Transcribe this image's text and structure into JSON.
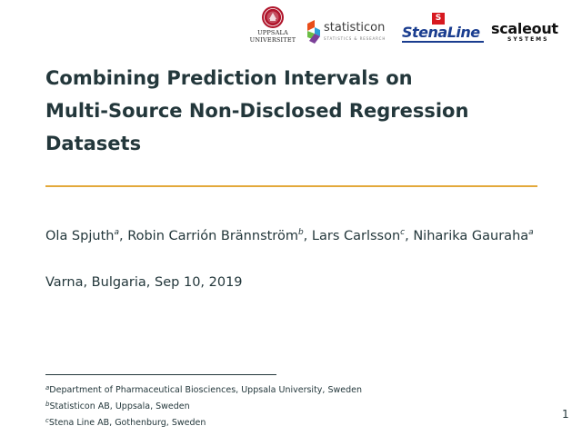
{
  "logos": {
    "uppsala": {
      "line1": "UPPSALA",
      "line2": "UNIVERSITET",
      "color": "#b0152b"
    },
    "statisticon": {
      "name": "statisticon",
      "tagline": "STATISTICS & RESEARCH"
    },
    "stenaline": {
      "flag_letter": "S",
      "name": "StenaLine"
    },
    "scaleout": {
      "name": "scaleout",
      "sub": "SYSTEMS"
    }
  },
  "title": {
    "line1": "Combining Prediction Intervals on",
    "line2": "Multi-Source Non-Disclosed Regression",
    "line3": "Datasets"
  },
  "authors": [
    {
      "name": "Ola Spjuth",
      "affil": "a",
      "sep": ","
    },
    {
      "name": "Robin Carrión Brännström",
      "affil": "b",
      "sep": ","
    },
    {
      "name": "Lars Carlsson",
      "affil": "c",
      "sep": ","
    },
    {
      "name": "Niharika Gauraha",
      "affil": "a",
      "sep": ""
    }
  ],
  "venue": "Varna, Bulgaria, Sep 10, 2019",
  "footnotes": [
    {
      "mark": "a",
      "text": "Department of Pharmaceutical Biosciences, Uppsala University, Sweden"
    },
    {
      "mark": "b",
      "text": "Statisticon AB, Uppsala, Sweden"
    },
    {
      "mark": "c",
      "text": "Stena Line AB, Gothenburg, Sweden"
    }
  ],
  "page_number": "1",
  "colors": {
    "accent_rule": "#e3a93b",
    "text": "#23373b"
  }
}
